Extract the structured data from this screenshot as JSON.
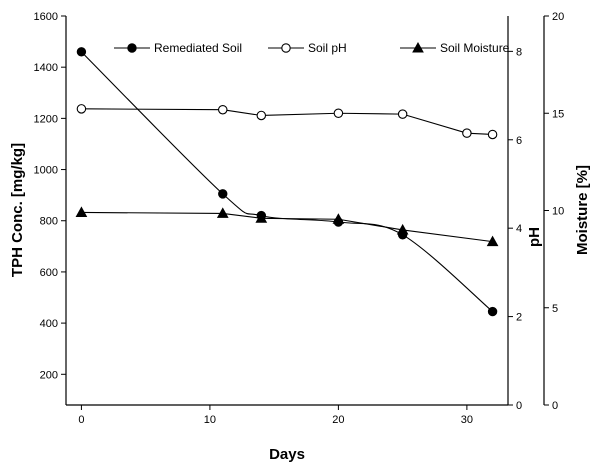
{
  "chart_data": {
    "type": "line",
    "x_axis": {
      "label": "Days",
      "ticks": [
        0,
        10,
        20,
        30
      ],
      "range": [
        -1.2,
        33.2
      ]
    },
    "y_axes": {
      "left": {
        "label": "TPH Conc. [mg/kg]",
        "ticks": [
          200,
          400,
          600,
          800,
          1000,
          1200,
          1400,
          1600
        ],
        "range": [
          80,
          1600
        ]
      },
      "right_ph": {
        "label": "pH",
        "ticks": [
          0,
          2,
          4,
          6,
          8
        ],
        "range": [
          0,
          8.8
        ]
      },
      "right_moisture": {
        "label": "Moisture [%]",
        "ticks": [
          0,
          5,
          10,
          15,
          20
        ],
        "range": [
          0,
          20
        ]
      }
    },
    "series": [
      {
        "name": "Remediated Soil",
        "axis": "left",
        "marker": "filled-circle",
        "smooth": true,
        "x": [
          0,
          11,
          14,
          20,
          25,
          32
        ],
        "y": [
          1460,
          905,
          820,
          795,
          745,
          445
        ]
      },
      {
        "name": "Soil pH",
        "axis": "right_ph",
        "marker": "open-circle",
        "smooth": false,
        "x": [
          0,
          11,
          14,
          20,
          25,
          30,
          32
        ],
        "y": [
          6.7,
          6.68,
          6.55,
          6.6,
          6.58,
          6.15,
          6.12
        ]
      },
      {
        "name": "Soil Moisture",
        "axis": "right_moisture",
        "marker": "filled-triangle",
        "smooth": false,
        "x": [
          0,
          11,
          14,
          20,
          25,
          32
        ],
        "y": [
          9.9,
          9.85,
          9.6,
          9.55,
          9.0,
          8.4
        ]
      }
    ],
    "legend_position": "top"
  }
}
